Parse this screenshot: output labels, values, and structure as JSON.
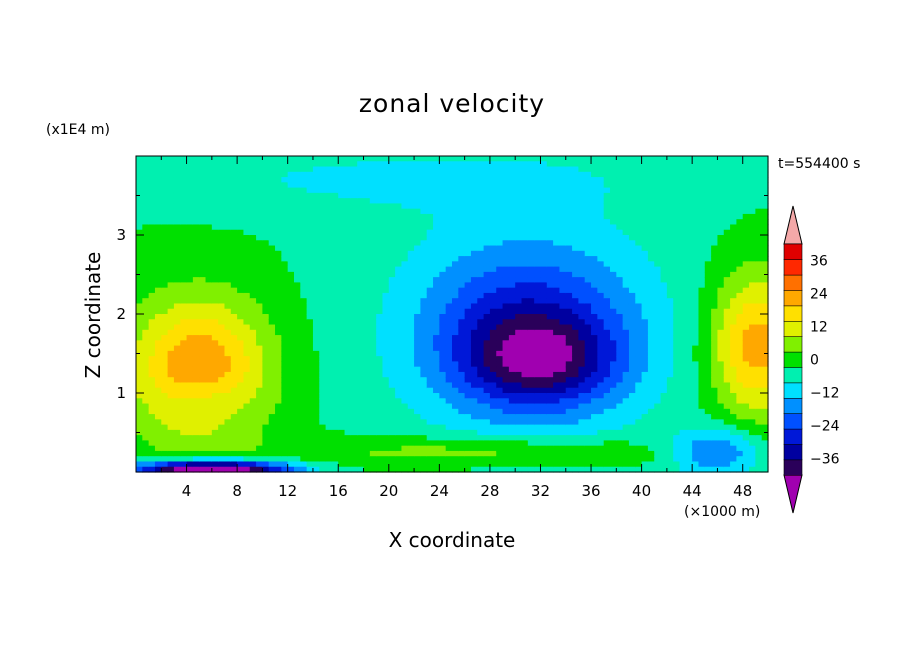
{
  "chart_data": {
    "type": "heatmap",
    "title": "zonal velocity",
    "xlabel": "X coordinate",
    "ylabel": "Z coordinate",
    "x_unit": "(×1000 m)",
    "y_unit": "(x1E4 m)",
    "time_label": "t=554400 s",
    "xlim": [
      0,
      50
    ],
    "ylim": [
      0,
      4
    ],
    "x_ticks": [
      4,
      8,
      12,
      16,
      20,
      24,
      28,
      32,
      36,
      40,
      44,
      48
    ],
    "y_ticks": [
      1,
      2,
      3
    ],
    "colorbar": {
      "levels": [
        -42,
        -36,
        -30,
        -24,
        -18,
        -12,
        -6,
        0,
        6,
        12,
        18,
        24,
        30,
        36,
        42
      ],
      "colors": [
        "#2a005a",
        "#0000a0",
        "#0018d8",
        "#0050ff",
        "#0090ff",
        "#00e0ff",
        "#00f0b0",
        "#00e000",
        "#80f000",
        "#e0f000",
        "#ffe000",
        "#ffa800",
        "#ff7000",
        "#ff2800",
        "#e00000"
      ],
      "under_color": "#a000b0",
      "over_color": "#f4a8a8",
      "tick_labels": [
        "36",
        "24",
        "12",
        "0",
        "−12",
        "−24",
        "−36"
      ],
      "tick_values": [
        36,
        24,
        12,
        0,
        -12,
        -24,
        -36
      ]
    },
    "features": [
      {
        "x": 5,
        "z": 1.3,
        "u": 30,
        "sx": 5.5,
        "sz": 0.9
      },
      {
        "x": 5.5,
        "z": 0.9,
        "u": -8,
        "sx": 3,
        "sz": 0.3
      },
      {
        "x": 32,
        "z": 1.4,
        "u": -22,
        "sx": 6,
        "sz": 0.55
      },
      {
        "x": 31,
        "z": 1.8,
        "u": -20,
        "sx": 8,
        "sz": 1.0
      },
      {
        "x": 31,
        "z": 1.8,
        "u": -10,
        "sx": 12,
        "sz": 1.7
      },
      {
        "x": 49,
        "z": 1.6,
        "u": 28,
        "sx": 3.5,
        "sz": 0.9
      },
      {
        "x": 6,
        "z": 0.02,
        "u": -60,
        "sx": 6,
        "sz": 0.12
      },
      {
        "x": 46,
        "z": 0.25,
        "u": -20,
        "sx": 3.5,
        "sz": 0.3
      },
      {
        "x": 28,
        "z": 0.25,
        "u": 12,
        "sx": 14,
        "sz": 0.2
      },
      {
        "x": 20,
        "z": 3.7,
        "u": -7,
        "sx": 20,
        "sz": 0.4
      }
    ]
  }
}
